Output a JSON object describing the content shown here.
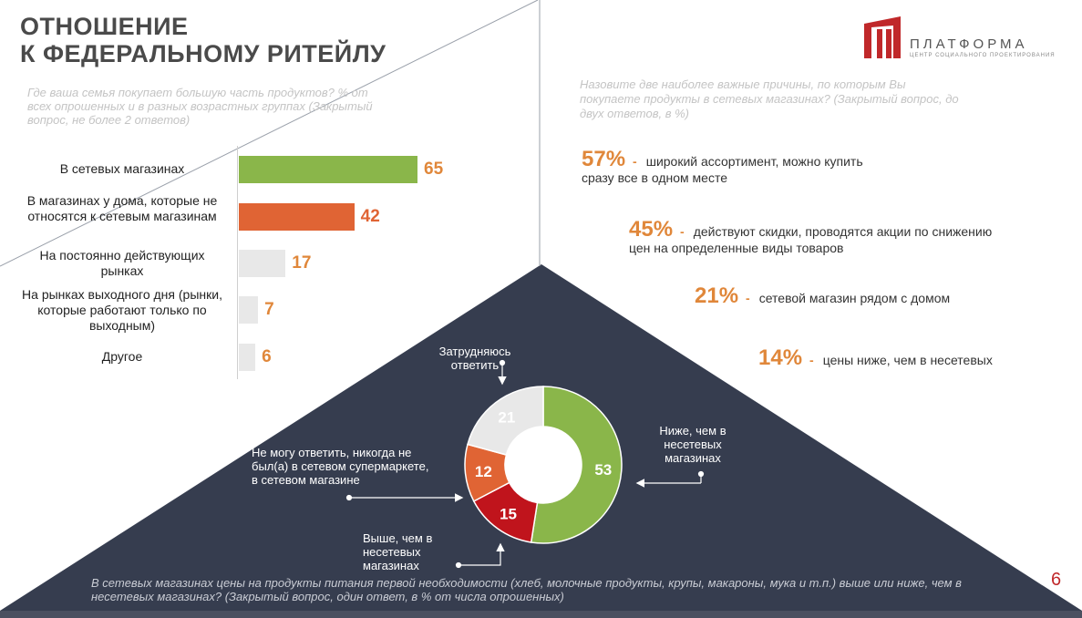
{
  "title_line1": "ОТНОШЕНИЕ",
  "title_line2": "К ФЕДЕРАЛЬНОМУ РИТЕЙЛУ",
  "logo": {
    "name": "ПЛАТФОРМА",
    "subtitle": "ЦЕНТР СОЦИАЛЬНОГО ПРОЕКТИРОВАНИЯ",
    "color": "#c0282a"
  },
  "left_question": "Где ваша семья покупает большую часть продуктов? % от всех опрошенных и в разных возрастных группах (Закрытый вопрос, не более 2 ответов)",
  "right_question": "Назовите две наиболее важные причины, по которым Вы покупаете продукты в сетевых магазинах? (Закрытый вопрос, до двух ответов, в %)",
  "reasons": [
    {
      "pct": "57%",
      "text": "широкий ассортимент, можно купить сразу все в одном месте"
    },
    {
      "pct": "45%",
      "text": "действуют скидки, проводятся акции по снижению цен на определенные виды товаров"
    },
    {
      "pct": "21%",
      "text": "сетевой магазин рядом с домом"
    },
    {
      "pct": "14%",
      "text": "цены ниже, чем в несетевых"
    }
  ],
  "footer_question": "В сетевых магазинах цены на продукты питания первой необходимости (хлеб, молочные продукты, крупы, макароны, мука и т.п.) выше или ниже, чем в несетевых магазинах? (Закрытый вопрос, один ответ, в % от числа опрошенных)",
  "page_number": "6",
  "colors": {
    "green": "#8ab64a",
    "orange": "#e06434",
    "light": "#e8e8e8",
    "red": "#c0141c",
    "dark": "#363d4f",
    "accent": "#e0873a"
  },
  "chart_data": [
    {
      "type": "bar",
      "orientation": "horizontal",
      "categories": [
        "В сетевых магазинах",
        "В магазинах у дома, которые не относятся к сетевым магазинам",
        "На постоянно действующих рынках",
        "На рынках выходного дня (рынки, которые работают только по выходным)",
        "Другое"
      ],
      "values": [
        65,
        42,
        17,
        7,
        6
      ],
      "value_labels": [
        "65",
        "42",
        "17",
        "7",
        "6"
      ],
      "colors": [
        "#8ab64a",
        "#e06434",
        "#e8e8e8",
        "#e8e8e8",
        "#e8e8e8"
      ],
      "xlim": [
        0,
        70
      ]
    },
    {
      "type": "pie",
      "subtype": "donut",
      "values": [
        53,
        15,
        12,
        21
      ],
      "value_labels": [
        "53",
        "15",
        "12",
        "21"
      ],
      "labels": [
        "Ниже, чем в несетевых магазинах",
        "Выше, чем в несетевых магазинах",
        "Не могу ответить, никогда не был(а) в сетевом супермаркете, в сетевом магазине",
        "Затрудняюсь ответить"
      ],
      "colors": [
        "#8ab64a",
        "#c0141c",
        "#e06434",
        "#e8e8e8"
      ]
    }
  ]
}
